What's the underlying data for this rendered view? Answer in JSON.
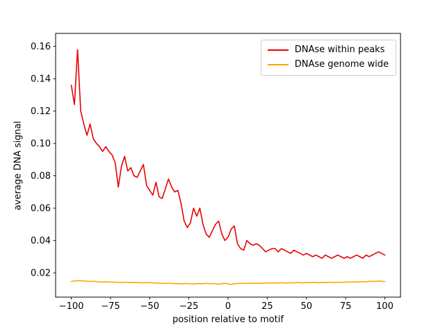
{
  "chart_data": {
    "type": "line",
    "title": "",
    "xlabel": "position relative to motif",
    "ylabel": "average DNA signal",
    "xlim": [
      -110,
      110
    ],
    "ylim": [
      0.005,
      0.168
    ],
    "xticks": [
      -100,
      -75,
      -50,
      -25,
      0,
      25,
      50,
      75,
      100
    ],
    "yticks": [
      0.02,
      0.04,
      0.06,
      0.08,
      0.1,
      0.12,
      0.14,
      0.16
    ],
    "grid": false,
    "legend_position": "upper right",
    "x": [
      -100,
      -98,
      -96,
      -94,
      -92,
      -90,
      -88,
      -86,
      -84,
      -82,
      -80,
      -78,
      -76,
      -74,
      -72,
      -70,
      -68,
      -66,
      -64,
      -62,
      -60,
      -58,
      -56,
      -54,
      -52,
      -50,
      -48,
      -46,
      -44,
      -42,
      -40,
      -38,
      -36,
      -34,
      -32,
      -30,
      -28,
      -26,
      -24,
      -22,
      -20,
      -18,
      -16,
      -14,
      -12,
      -10,
      -8,
      -6,
      -4,
      -2,
      0,
      2,
      4,
      6,
      8,
      10,
      12,
      14,
      16,
      18,
      20,
      22,
      24,
      26,
      28,
      30,
      32,
      34,
      36,
      38,
      40,
      42,
      44,
      46,
      48,
      50,
      52,
      54,
      56,
      58,
      60,
      62,
      64,
      66,
      68,
      70,
      72,
      74,
      76,
      78,
      80,
      82,
      84,
      86,
      88,
      90,
      92,
      94,
      96,
      98,
      100
    ],
    "series": [
      {
        "name": "DNAse within peaks",
        "color": "#e80000",
        "values": [
          0.136,
          0.124,
          0.158,
          0.12,
          0.112,
          0.105,
          0.112,
          0.103,
          0.1,
          0.098,
          0.095,
          0.098,
          0.095,
          0.093,
          0.088,
          0.073,
          0.086,
          0.092,
          0.083,
          0.085,
          0.08,
          0.079,
          0.083,
          0.087,
          0.074,
          0.071,
          0.068,
          0.076,
          0.067,
          0.066,
          0.072,
          0.078,
          0.073,
          0.07,
          0.071,
          0.063,
          0.052,
          0.048,
          0.051,
          0.06,
          0.055,
          0.06,
          0.05,
          0.044,
          0.042,
          0.046,
          0.05,
          0.052,
          0.044,
          0.04,
          0.042,
          0.047,
          0.049,
          0.038,
          0.035,
          0.034,
          0.04,
          0.038,
          0.037,
          0.038,
          0.037,
          0.035,
          0.033,
          0.034,
          0.035,
          0.035,
          0.033,
          0.035,
          0.034,
          0.033,
          0.032,
          0.034,
          0.033,
          0.032,
          0.031,
          0.032,
          0.031,
          0.03,
          0.031,
          0.03,
          0.029,
          0.031,
          0.03,
          0.029,
          0.03,
          0.031,
          0.03,
          0.029,
          0.03,
          0.029,
          0.03,
          0.031,
          0.03,
          0.029,
          0.031,
          0.03,
          0.031,
          0.032,
          0.033,
          0.032,
          0.031
        ]
      },
      {
        "name": "DNAse genome wide",
        "color": "#ffa500",
        "values": [
          0.0146,
          0.015,
          0.0152,
          0.0151,
          0.015,
          0.0148,
          0.0147,
          0.0148,
          0.0146,
          0.0144,
          0.0143,
          0.0145,
          0.0144,
          0.0142,
          0.0143,
          0.0141,
          0.014,
          0.0142,
          0.0141,
          0.014,
          0.0141,
          0.0139,
          0.014,
          0.0138,
          0.0139,
          0.014,
          0.0138,
          0.0137,
          0.0136,
          0.0135,
          0.0134,
          0.0136,
          0.0135,
          0.0133,
          0.0134,
          0.0132,
          0.0133,
          0.0134,
          0.0132,
          0.0131,
          0.0133,
          0.0134,
          0.0132,
          0.0135,
          0.0133,
          0.0134,
          0.0132,
          0.013,
          0.0133,
          0.0136,
          0.0131,
          0.0129,
          0.0132,
          0.0135,
          0.0134,
          0.0136,
          0.0135,
          0.0137,
          0.0136,
          0.0135,
          0.0137,
          0.0136,
          0.0138,
          0.0137,
          0.0136,
          0.0138,
          0.0137,
          0.0139,
          0.0138,
          0.0137,
          0.0139,
          0.0138,
          0.014,
          0.0139,
          0.0138,
          0.014,
          0.0139,
          0.0141,
          0.014,
          0.0139,
          0.0141,
          0.014,
          0.0142,
          0.0141,
          0.014,
          0.0142,
          0.0141,
          0.0143,
          0.0142,
          0.0144,
          0.0143,
          0.0145,
          0.0144,
          0.0146,
          0.0145,
          0.0147,
          0.0148,
          0.0147,
          0.0149,
          0.0148,
          0.0146
        ]
      }
    ]
  }
}
